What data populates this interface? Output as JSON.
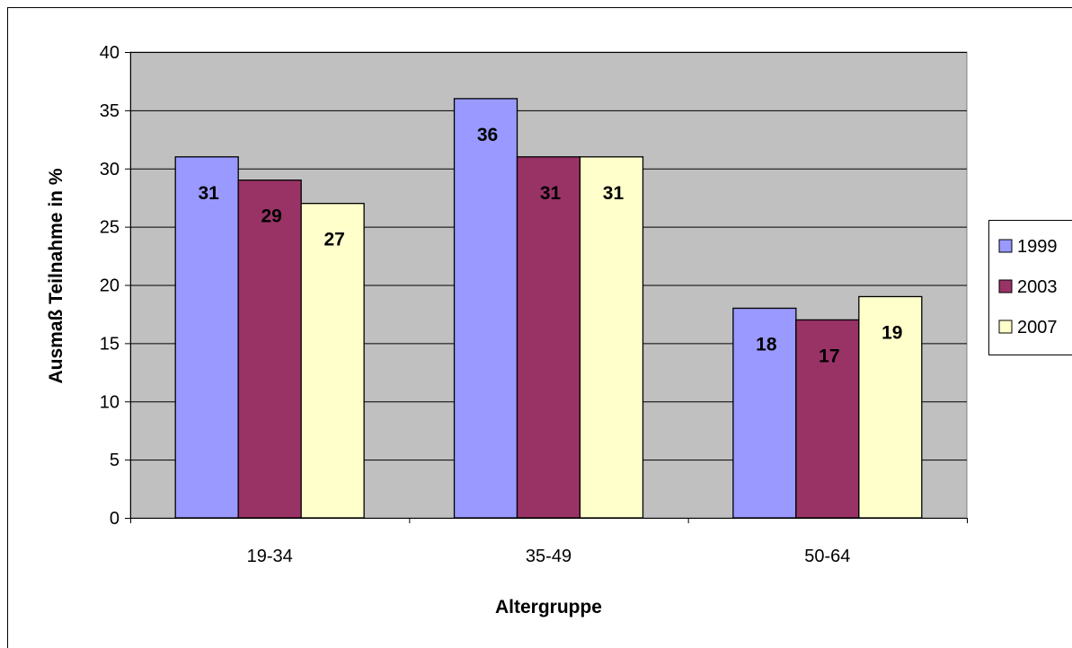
{
  "chart_data": {
    "type": "bar",
    "title": "",
    "xlabel": "Altergruppe",
    "ylabel": "Ausmaß Teilnahme in %",
    "categories": [
      "19-34",
      "35-49",
      "50-64"
    ],
    "ylim": [
      0,
      40
    ],
    "yticks": [
      0,
      5,
      10,
      15,
      20,
      25,
      30,
      35,
      40
    ],
    "grid": true,
    "legend_position": "right",
    "series": [
      {
        "name": "1999",
        "values": [
          31,
          36,
          18
        ],
        "color": "#9999ff"
      },
      {
        "name": "2003",
        "values": [
          29,
          31,
          17
        ],
        "color": "#993366"
      },
      {
        "name": "2007",
        "values": [
          27,
          31,
          19
        ],
        "color": "#ffffcc"
      }
    ],
    "plot_background": "#c0c0c0"
  }
}
